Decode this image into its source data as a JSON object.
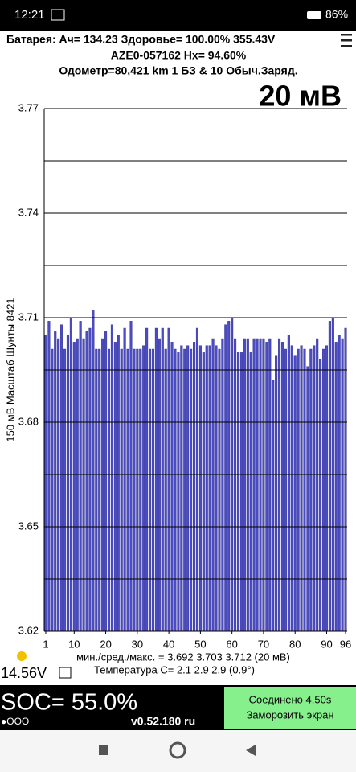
{
  "status_bar": {
    "time": "12:21",
    "battery": "86%"
  },
  "header": {
    "line1": "Батарея:  Ач= 134.23  Здоровье= 100.00%   355.43V",
    "line2": "AZE0-057162   Hx= 94.60%",
    "line3": "Одометр=80,421 km 1 БЗ & 10 Обыч.Заряд."
  },
  "chart_data": {
    "type": "bar",
    "scale_label": "20 мВ",
    "y_label": "150 мВ Масштаб  Шунты 8421",
    "color": "#4b4bc3",
    "x": [
      1,
      2,
      3,
      4,
      5,
      6,
      7,
      8,
      9,
      10,
      11,
      12,
      13,
      14,
      15,
      16,
      17,
      18,
      19,
      20,
      21,
      22,
      23,
      24,
      25,
      26,
      27,
      28,
      29,
      30,
      31,
      32,
      33,
      34,
      35,
      36,
      37,
      38,
      39,
      40,
      41,
      42,
      43,
      44,
      45,
      46,
      47,
      48,
      49,
      50,
      51,
      52,
      53,
      54,
      55,
      56,
      57,
      58,
      59,
      60,
      61,
      62,
      63,
      64,
      65,
      66,
      67,
      68,
      69,
      70,
      71,
      72,
      73,
      74,
      75,
      76,
      77,
      78,
      79,
      80,
      81,
      82,
      83,
      84,
      85,
      86,
      87,
      88,
      89,
      90,
      91,
      92,
      93,
      94,
      95,
      96
    ],
    "values": [
      3.705,
      3.709,
      3.701,
      3.706,
      3.704,
      3.708,
      3.701,
      3.705,
      3.71,
      3.703,
      3.704,
      3.709,
      3.704,
      3.706,
      3.707,
      3.712,
      3.701,
      3.701,
      3.704,
      3.706,
      3.701,
      3.708,
      3.703,
      3.705,
      3.701,
      3.707,
      3.701,
      3.709,
      3.701,
      3.701,
      3.701,
      3.702,
      3.707,
      3.701,
      3.701,
      3.707,
      3.704,
      3.707,
      3.701,
      3.707,
      3.703,
      3.701,
      3.7,
      3.702,
      3.701,
      3.702,
      3.701,
      3.703,
      3.707,
      3.702,
      3.7,
      3.702,
      3.702,
      3.704,
      3.702,
      3.701,
      3.704,
      3.708,
      3.709,
      3.71,
      3.704,
      3.7,
      3.7,
      3.704,
      3.704,
      3.7,
      3.704,
      3.704,
      3.704,
      3.704,
      3.703,
      3.704,
      3.692,
      3.699,
      3.704,
      3.703,
      3.701,
      3.705,
      3.702,
      3.699,
      3.701,
      3.702,
      3.701,
      3.696,
      3.701,
      3.702,
      3.704,
      3.698,
      3.701,
      3.702,
      3.709,
      3.71,
      3.703,
      3.705,
      3.704,
      3.707
    ],
    "xlim": [
      0.5,
      96.5
    ],
    "xticks": [
      1,
      10,
      20,
      30,
      40,
      50,
      60,
      70,
      80,
      90,
      96
    ],
    "ylim": [
      3.62,
      3.77
    ],
    "yticks": [
      3.62,
      3.65,
      3.68,
      3.71,
      3.74,
      3.77
    ],
    "grid_lines": [
      3.635,
      3.665,
      3.695,
      3.725,
      3.755
    ],
    "stats": "мин./сред./макс. = 3.692 3.703 3.712  (20 мВ)"
  },
  "footer": {
    "pack_voltage": "14.56V",
    "temperature": "Температура С= 2.1  2.9  2.9  (0.9°)",
    "soc": "SOC= 55.0%",
    "dots": "●OOO",
    "version": "v0.52.180 ru",
    "button_line1": "Соединено 4.50s",
    "button_line2": "Заморозить экран"
  }
}
